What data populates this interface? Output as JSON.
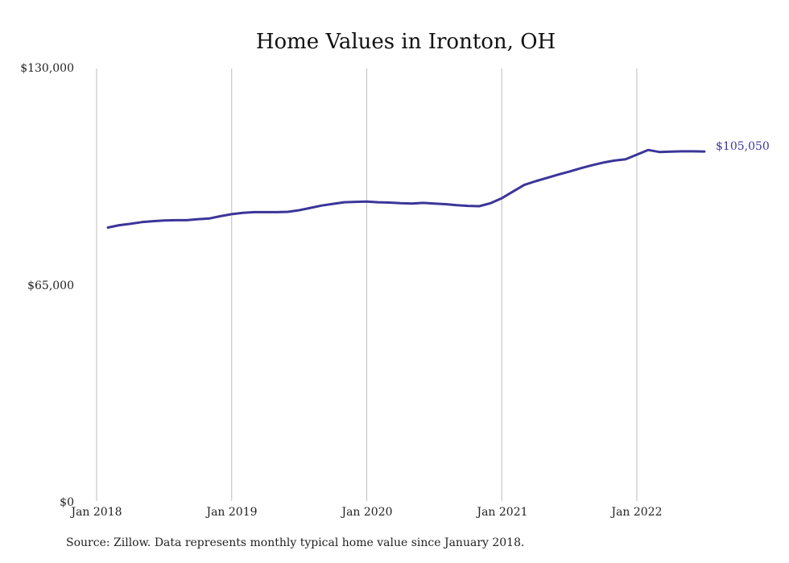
{
  "source_note": "Source: Zillow. Data represents monthly typical home value since January 2018.",
  "colors": {
    "line": "#3b3599",
    "grid": "#bdbdbd",
    "axis": "#222222"
  },
  "chart_data": {
    "type": "line",
    "title": "Home Values in Ironton, OH",
    "xlabel": "",
    "ylabel": "",
    "grid": true,
    "x_tick_labels": [
      "Jan 2018",
      "Jan 2019",
      "Jan 2020",
      "Jan 2021",
      "Jan 2022"
    ],
    "y_tick_labels": [
      "$130,000",
      "$65,000",
      "$0"
    ],
    "ylim": [
      0,
      130000
    ],
    "xlim": [
      "2018-01",
      "2022-09"
    ],
    "end_label": "$105,050",
    "series": [
      {
        "x": [
          "2018-02",
          "2018-03",
          "2018-04",
          "2018-05",
          "2018-06",
          "2018-07",
          "2018-08",
          "2018-09",
          "2018-10",
          "2018-11",
          "2018-12",
          "2019-01",
          "2019-02",
          "2019-03",
          "2019-04",
          "2019-05",
          "2019-06",
          "2019-07",
          "2019-08",
          "2019-09",
          "2019-10",
          "2019-11",
          "2019-12",
          "2020-01",
          "2020-02",
          "2020-03",
          "2020-04",
          "2020-05",
          "2020-06",
          "2020-07",
          "2020-08",
          "2020-09",
          "2020-10",
          "2020-11",
          "2020-12",
          "2021-01",
          "2021-02",
          "2021-03",
          "2021-04",
          "2021-05",
          "2021-06",
          "2021-07",
          "2021-08",
          "2021-09",
          "2021-10",
          "2021-11",
          "2021-12",
          "2022-01",
          "2022-02",
          "2022-03",
          "2022-04",
          "2022-05",
          "2022-06",
          "2022-07"
        ],
        "values": [
          82200,
          82900,
          83300,
          83800,
          84100,
          84300,
          84400,
          84400,
          84700,
          84900,
          85600,
          86200,
          86600,
          86800,
          86800,
          86800,
          86900,
          87400,
          88100,
          88800,
          89300,
          89800,
          89900,
          90000,
          89800,
          89700,
          89500,
          89400,
          89600,
          89400,
          89200,
          88900,
          88700,
          88600,
          89500,
          91000,
          93000,
          95000,
          96100,
          97100,
          98100,
          99000,
          100000,
          100900,
          101700,
          102300,
          102700,
          104100,
          105500,
          104900,
          105000,
          105100,
          105100,
          105050
        ]
      }
    ]
  }
}
